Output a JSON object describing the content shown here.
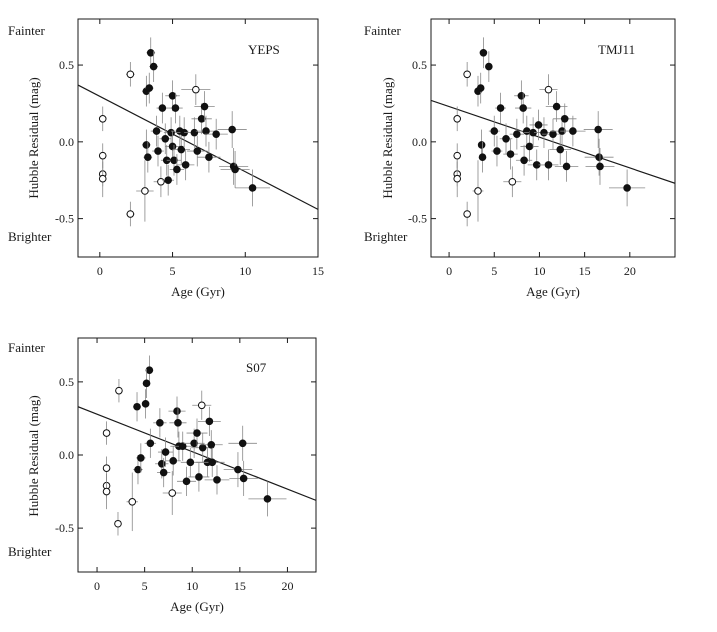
{
  "chart_data": [
    {
      "type": "scatter",
      "title": "YEPS",
      "xlabel": "Age (Gyr)",
      "ylabel": "Hubble Residual (mag)",
      "top_annotation": "Fainter",
      "bottom_annotation": "Brighter",
      "xlim": [
        -1.5,
        15
      ],
      "ylim": [
        -0.75,
        0.8
      ],
      "xticks": [
        0,
        5,
        10,
        15
      ],
      "yticks": [
        -0.5,
        0.0,
        0.5
      ],
      "xtick_labels": [
        "0",
        "5",
        "10",
        "15"
      ],
      "ytick_labels": [
        "-0.5",
        "0.0",
        "0.5"
      ],
      "fit_line": {
        "x": [
          -1.5,
          15
        ],
        "y": [
          0.37,
          -0.44
        ]
      },
      "series": [
        {
          "name": "open",
          "filled": false,
          "points": [
            {
              "x": 0.2,
              "y": 0.15,
              "xerr": 0.1,
              "yerr": 0.08
            },
            {
              "x": 0.2,
              "y": -0.09,
              "xerr": 0.1,
              "yerr": 0.08
            },
            {
              "x": 0.2,
              "y": -0.21,
              "xerr": 0.1,
              "yerr": 0.08
            },
            {
              "x": 0.2,
              "y": -0.24,
              "xerr": 0.1,
              "yerr": 0.12
            },
            {
              "x": 2.1,
              "y": 0.44,
              "xerr": 0.3,
              "yerr": 0.08
            },
            {
              "x": 2.1,
              "y": -0.47,
              "xerr": 0.3,
              "yerr": 0.08
            },
            {
              "x": 3.1,
              "y": -0.32,
              "xerr": 0.6,
              "yerr": 0.2
            },
            {
              "x": 4.2,
              "y": -0.26,
              "xerr": 0.5,
              "yerr": 0.1
            },
            {
              "x": 6.6,
              "y": 0.34,
              "xerr": 1.0,
              "yerr": 0.1
            }
          ]
        },
        {
          "name": "filled",
          "filled": true,
          "points": [
            {
              "x": 3.2,
              "y": 0.33,
              "xerr": 0.3,
              "yerr": 0.1
            },
            {
              "x": 3.4,
              "y": 0.35,
              "xerr": 0.3,
              "yerr": 0.1
            },
            {
              "x": 3.5,
              "y": 0.58,
              "xerr": 0.3,
              "yerr": 0.1
            },
            {
              "x": 3.7,
              "y": 0.49,
              "xerr": 0.3,
              "yerr": 0.1
            },
            {
              "x": 3.2,
              "y": -0.02,
              "xerr": 0.3,
              "yerr": 0.1
            },
            {
              "x": 3.3,
              "y": -0.1,
              "xerr": 0.3,
              "yerr": 0.1
            },
            {
              "x": 3.9,
              "y": 0.07,
              "xerr": 0.4,
              "yerr": 0.1
            },
            {
              "x": 4.0,
              "y": -0.06,
              "xerr": 0.4,
              "yerr": 0.1
            },
            {
              "x": 4.3,
              "y": 0.22,
              "xerr": 0.4,
              "yerr": 0.1
            },
            {
              "x": 4.5,
              "y": 0.02,
              "xerr": 0.4,
              "yerr": 0.1
            },
            {
              "x": 4.6,
              "y": -0.12,
              "xerr": 0.4,
              "yerr": 0.1
            },
            {
              "x": 4.7,
              "y": -0.25,
              "xerr": 0.4,
              "yerr": 0.1
            },
            {
              "x": 4.9,
              "y": 0.06,
              "xerr": 0.5,
              "yerr": 0.1
            },
            {
              "x": 5.0,
              "y": -0.03,
              "xerr": 0.5,
              "yerr": 0.1
            },
            {
              "x": 5.0,
              "y": 0.3,
              "xerr": 0.5,
              "yerr": 0.1
            },
            {
              "x": 5.1,
              "y": -0.12,
              "xerr": 0.5,
              "yerr": 0.1
            },
            {
              "x": 5.2,
              "y": 0.22,
              "xerr": 0.5,
              "yerr": 0.1
            },
            {
              "x": 5.3,
              "y": -0.18,
              "xerr": 0.5,
              "yerr": 0.1
            },
            {
              "x": 5.5,
              "y": 0.07,
              "xerr": 0.6,
              "yerr": 0.1
            },
            {
              "x": 5.6,
              "y": -0.05,
              "xerr": 0.6,
              "yerr": 0.1
            },
            {
              "x": 5.8,
              "y": 0.06,
              "xerr": 0.6,
              "yerr": 0.1
            },
            {
              "x": 5.9,
              "y": -0.15,
              "xerr": 0.6,
              "yerr": 0.1
            },
            {
              "x": 6.5,
              "y": 0.06,
              "xerr": 0.7,
              "yerr": 0.1
            },
            {
              "x": 6.7,
              "y": -0.06,
              "xerr": 0.7,
              "yerr": 0.1
            },
            {
              "x": 7.0,
              "y": 0.15,
              "xerr": 0.7,
              "yerr": 0.1
            },
            {
              "x": 7.2,
              "y": 0.23,
              "xerr": 0.7,
              "yerr": 0.1
            },
            {
              "x": 7.3,
              "y": 0.07,
              "xerr": 0.7,
              "yerr": 0.1
            },
            {
              "x": 7.5,
              "y": -0.1,
              "xerr": 0.8,
              "yerr": 0.1
            },
            {
              "x": 8.0,
              "y": 0.05,
              "xerr": 0.8,
              "yerr": 0.1
            },
            {
              "x": 9.1,
              "y": 0.08,
              "xerr": 1.0,
              "yerr": 0.12
            },
            {
              "x": 9.2,
              "y": -0.16,
              "xerr": 1.0,
              "yerr": 0.12
            },
            {
              "x": 9.3,
              "y": -0.18,
              "xerr": 1.0,
              "yerr": 0.12
            },
            {
              "x": 10.5,
              "y": -0.3,
              "xerr": 1.2,
              "yerr": 0.12
            }
          ]
        }
      ]
    },
    {
      "type": "scatter",
      "title": "TMJ11",
      "xlabel": "Age (Gyr)",
      "ylabel": "Hubble Residual (mag)",
      "top_annotation": "Fainter",
      "bottom_annotation": "Brighter",
      "xlim": [
        -2,
        25
      ],
      "ylim": [
        -0.75,
        0.8
      ],
      "xticks": [
        0,
        5,
        10,
        15,
        20
      ],
      "yticks": [
        -0.5,
        0.0,
        0.5
      ],
      "xtick_labels": [
        "0",
        "5",
        "10",
        "15",
        "20"
      ],
      "ytick_labels": [
        "-0.5",
        "0.0",
        "0.5"
      ],
      "fit_line": {
        "x": [
          -2,
          25
        ],
        "y": [
          0.27,
          -0.27
        ]
      },
      "series": [
        {
          "name": "open",
          "filled": false,
          "points": [
            {
              "x": 0.9,
              "y": 0.15,
              "xerr": 0.1,
              "yerr": 0.08
            },
            {
              "x": 0.9,
              "y": -0.09,
              "xerr": 0.1,
              "yerr": 0.08
            },
            {
              "x": 0.9,
              "y": -0.21,
              "xerr": 0.1,
              "yerr": 0.08
            },
            {
              "x": 0.9,
              "y": -0.24,
              "xerr": 0.1,
              "yerr": 0.12
            },
            {
              "x": 2.0,
              "y": 0.44,
              "xerr": 0.3,
              "yerr": 0.08
            },
            {
              "x": 2.0,
              "y": -0.47,
              "xerr": 0.3,
              "yerr": 0.08
            },
            {
              "x": 3.2,
              "y": -0.32,
              "xerr": 0.6,
              "yerr": 0.2
            },
            {
              "x": 7.0,
              "y": -0.26,
              "xerr": 1.0,
              "yerr": 0.1
            },
            {
              "x": 11.0,
              "y": 0.34,
              "xerr": 1.0,
              "yerr": 0.1
            }
          ]
        },
        {
          "name": "filled",
          "filled": true,
          "points": [
            {
              "x": 3.2,
              "y": 0.33,
              "xerr": 0.3,
              "yerr": 0.1
            },
            {
              "x": 3.5,
              "y": 0.35,
              "xerr": 0.3,
              "yerr": 0.1
            },
            {
              "x": 3.8,
              "y": 0.58,
              "xerr": 0.3,
              "yerr": 0.1
            },
            {
              "x": 4.4,
              "y": 0.49,
              "xerr": 0.3,
              "yerr": 0.1
            },
            {
              "x": 3.6,
              "y": -0.02,
              "xerr": 0.4,
              "yerr": 0.1
            },
            {
              "x": 3.7,
              "y": -0.1,
              "xerr": 0.4,
              "yerr": 0.1
            },
            {
              "x": 5.0,
              "y": 0.07,
              "xerr": 0.6,
              "yerr": 0.1
            },
            {
              "x": 5.3,
              "y": -0.06,
              "xerr": 0.6,
              "yerr": 0.1
            },
            {
              "x": 5.7,
              "y": 0.22,
              "xerr": 0.6,
              "yerr": 0.1
            },
            {
              "x": 6.3,
              "y": 0.02,
              "xerr": 0.7,
              "yerr": 0.1
            },
            {
              "x": 6.8,
              "y": -0.08,
              "xerr": 0.8,
              "yerr": 0.1
            },
            {
              "x": 7.5,
              "y": 0.05,
              "xerr": 0.8,
              "yerr": 0.1
            },
            {
              "x": 8.0,
              "y": 0.3,
              "xerr": 0.8,
              "yerr": 0.1
            },
            {
              "x": 8.2,
              "y": 0.22,
              "xerr": 0.9,
              "yerr": 0.1
            },
            {
              "x": 8.3,
              "y": -0.12,
              "xerr": 0.9,
              "yerr": 0.1
            },
            {
              "x": 8.6,
              "y": 0.07,
              "xerr": 0.9,
              "yerr": 0.1
            },
            {
              "x": 8.9,
              "y": -0.03,
              "xerr": 1.0,
              "yerr": 0.1
            },
            {
              "x": 9.3,
              "y": 0.06,
              "xerr": 1.0,
              "yerr": 0.1
            },
            {
              "x": 9.7,
              "y": -0.15,
              "xerr": 1.0,
              "yerr": 0.1
            },
            {
              "x": 9.9,
              "y": 0.11,
              "xerr": 1.0,
              "yerr": 0.1
            },
            {
              "x": 10.5,
              "y": 0.06,
              "xerr": 1.1,
              "yerr": 0.1
            },
            {
              "x": 11.0,
              "y": -0.15,
              "xerr": 1.1,
              "yerr": 0.1
            },
            {
              "x": 11.5,
              "y": 0.05,
              "xerr": 1.2,
              "yerr": 0.1
            },
            {
              "x": 11.9,
              "y": 0.23,
              "xerr": 1.2,
              "yerr": 0.1
            },
            {
              "x": 12.3,
              "y": -0.05,
              "xerr": 1.2,
              "yerr": 0.1
            },
            {
              "x": 12.5,
              "y": 0.07,
              "xerr": 1.3,
              "yerr": 0.1
            },
            {
              "x": 12.8,
              "y": 0.15,
              "xerr": 1.3,
              "yerr": 0.1
            },
            {
              "x": 13.0,
              "y": -0.16,
              "xerr": 1.3,
              "yerr": 0.1
            },
            {
              "x": 13.7,
              "y": 0.07,
              "xerr": 1.4,
              "yerr": 0.1
            },
            {
              "x": 16.5,
              "y": 0.08,
              "xerr": 1.6,
              "yerr": 0.12
            },
            {
              "x": 16.6,
              "y": -0.1,
              "xerr": 1.6,
              "yerr": 0.12
            },
            {
              "x": 16.7,
              "y": -0.16,
              "xerr": 1.6,
              "yerr": 0.12
            },
            {
              "x": 19.7,
              "y": -0.3,
              "xerr": 2.0,
              "yerr": 0.12
            }
          ]
        }
      ]
    },
    {
      "type": "scatter",
      "title": "S07",
      "xlabel": "Age (Gyr)",
      "ylabel": "Hubble Residual (mag)",
      "top_annotation": "Fainter",
      "bottom_annotation": "Brighter",
      "xlim": [
        -2,
        23
      ],
      "ylim": [
        -0.8,
        0.8
      ],
      "xticks": [
        0,
        5,
        10,
        15,
        20
      ],
      "yticks": [
        -0.5,
        0.0,
        0.5
      ],
      "xtick_labels": [
        "0",
        "5",
        "10",
        "15",
        "20"
      ],
      "ytick_labels": [
        "-0.5",
        "0.0",
        "0.5"
      ],
      "fit_line": {
        "x": [
          -2,
          23
        ],
        "y": [
          0.33,
          -0.31
        ]
      },
      "series": [
        {
          "name": "open",
          "filled": false,
          "points": [
            {
              "x": 1.0,
              "y": 0.15,
              "xerr": 0.1,
              "yerr": 0.08
            },
            {
              "x": 1.0,
              "y": -0.09,
              "xerr": 0.1,
              "yerr": 0.08
            },
            {
              "x": 1.0,
              "y": -0.21,
              "xerr": 0.1,
              "yerr": 0.08
            },
            {
              "x": 1.0,
              "y": -0.25,
              "xerr": 0.1,
              "yerr": 0.12
            },
            {
              "x": 2.3,
              "y": 0.44,
              "xerr": 0.3,
              "yerr": 0.08
            },
            {
              "x": 2.2,
              "y": -0.47,
              "xerr": 0.3,
              "yerr": 0.08
            },
            {
              "x": 3.7,
              "y": -0.32,
              "xerr": 0.6,
              "yerr": 0.2
            },
            {
              "x": 7.9,
              "y": -0.26,
              "xerr": 1.0,
              "yerr": 0.15
            },
            {
              "x": 11.0,
              "y": 0.34,
              "xerr": 1.0,
              "yerr": 0.1
            }
          ]
        },
        {
          "name": "filled",
          "filled": true,
          "points": [
            {
              "x": 4.2,
              "y": 0.33,
              "xerr": 0.4,
              "yerr": 0.1
            },
            {
              "x": 5.1,
              "y": 0.35,
              "xerr": 0.4,
              "yerr": 0.1
            },
            {
              "x": 5.5,
              "y": 0.58,
              "xerr": 0.4,
              "yerr": 0.1
            },
            {
              "x": 5.2,
              "y": 0.49,
              "xerr": 0.4,
              "yerr": 0.1
            },
            {
              "x": 4.3,
              "y": -0.1,
              "xerr": 0.5,
              "yerr": 0.1
            },
            {
              "x": 4.6,
              "y": -0.02,
              "xerr": 0.5,
              "yerr": 0.1
            },
            {
              "x": 5.6,
              "y": 0.08,
              "xerr": 0.6,
              "yerr": 0.1
            },
            {
              "x": 6.6,
              "y": 0.22,
              "xerr": 0.7,
              "yerr": 0.1
            },
            {
              "x": 6.8,
              "y": -0.06,
              "xerr": 0.7,
              "yerr": 0.1
            },
            {
              "x": 7.0,
              "y": -0.12,
              "xerr": 0.7,
              "yerr": 0.1
            },
            {
              "x": 7.2,
              "y": 0.02,
              "xerr": 0.8,
              "yerr": 0.1
            },
            {
              "x": 8.0,
              "y": -0.04,
              "xerr": 0.8,
              "yerr": 0.1
            },
            {
              "x": 8.4,
              "y": 0.3,
              "xerr": 0.9,
              "yerr": 0.1
            },
            {
              "x": 8.5,
              "y": 0.22,
              "xerr": 0.9,
              "yerr": 0.1
            },
            {
              "x": 8.6,
              "y": 0.06,
              "xerr": 0.9,
              "yerr": 0.1
            },
            {
              "x": 9.0,
              "y": 0.06,
              "xerr": 1.0,
              "yerr": 0.1
            },
            {
              "x": 9.4,
              "y": -0.18,
              "xerr": 1.0,
              "yerr": 0.1
            },
            {
              "x": 9.8,
              "y": -0.05,
              "xerr": 1.0,
              "yerr": 0.1
            },
            {
              "x": 10.2,
              "y": 0.08,
              "xerr": 1.1,
              "yerr": 0.1
            },
            {
              "x": 10.5,
              "y": 0.15,
              "xerr": 1.1,
              "yerr": 0.1
            },
            {
              "x": 10.7,
              "y": -0.15,
              "xerr": 1.1,
              "yerr": 0.1
            },
            {
              "x": 11.1,
              "y": 0.05,
              "xerr": 1.2,
              "yerr": 0.1
            },
            {
              "x": 11.6,
              "y": -0.05,
              "xerr": 1.2,
              "yerr": 0.1
            },
            {
              "x": 11.8,
              "y": 0.23,
              "xerr": 1.2,
              "yerr": 0.1
            },
            {
              "x": 12.0,
              "y": 0.07,
              "xerr": 1.2,
              "yerr": 0.1
            },
            {
              "x": 12.1,
              "y": -0.05,
              "xerr": 1.3,
              "yerr": 0.1
            },
            {
              "x": 12.6,
              "y": -0.17,
              "xerr": 1.3,
              "yerr": 0.1
            },
            {
              "x": 14.8,
              "y": -0.1,
              "xerr": 1.5,
              "yerr": 0.12
            },
            {
              "x": 15.3,
              "y": 0.08,
              "xerr": 1.5,
              "yerr": 0.12
            },
            {
              "x": 15.4,
              "y": -0.16,
              "xerr": 1.5,
              "yerr": 0.12
            },
            {
              "x": 17.9,
              "y": -0.3,
              "xerr": 2.0,
              "yerr": 0.12
            }
          ]
        }
      ]
    }
  ]
}
